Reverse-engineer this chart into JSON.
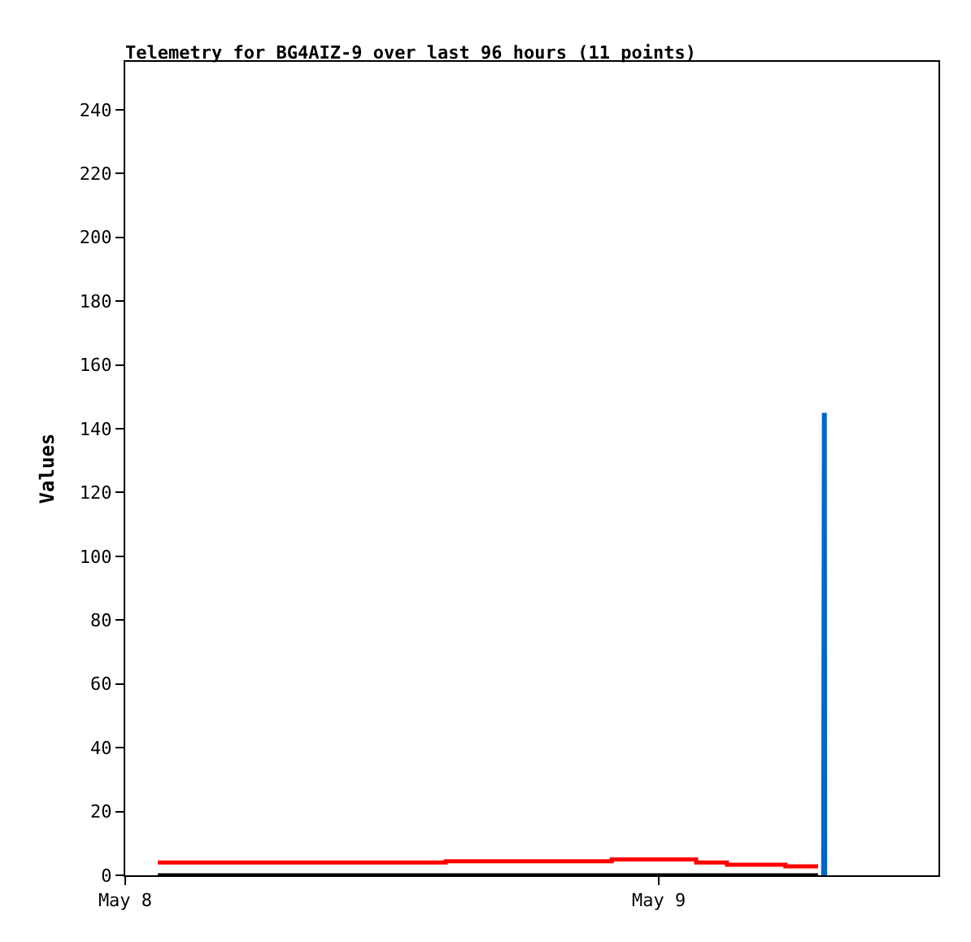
{
  "chart_data": {
    "type": "line",
    "title": "Telemetry for BG4AIZ-9 over last 96 hours (11 points)",
    "ylabel": "Values",
    "series": [
      {
        "color": "#000000",
        "x": [
          "--05-08T01:28",
          "--05-09T07:10"
        ],
        "values": [
          0,
          0
        ]
      },
      {
        "type": "step",
        "color": "#ff0000",
        "x": [
          "--05-08T01:28",
          "--05-08T14:25",
          "--05-08T21:53",
          "--05-09T01:41",
          "--05-09T03:04",
          "--05-09T05:42",
          "--05-09T07:10"
        ],
        "values": [
          4,
          4.4,
          5,
          4,
          3.3,
          2.8,
          2.8
        ]
      },
      {
        "color": "#0066cc",
        "x": [
          "--05-09T07:25",
          "--05-09T07:26",
          "--05-09T07:27",
          "--05-09T07:28"
        ],
        "values": [
          0,
          73,
          145,
          0
        ]
      }
    ],
    "xlim": [
      "--05-08T00:00",
      "--05-09T12:35"
    ],
    "xticks": [
      {
        "value": "--05-08",
        "label": "May 8"
      },
      {
        "value": "--05-09",
        "label": "May 9"
      }
    ],
    "ylim": [
      0,
      255
    ],
    "yticks": [
      0,
      20,
      40,
      60,
      80,
      100,
      120,
      140,
      160,
      180,
      200,
      220,
      240
    ],
    "grid": false
  }
}
